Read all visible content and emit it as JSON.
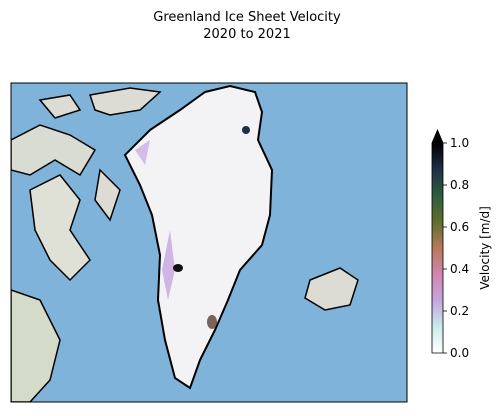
{
  "title": "Greenland Ice Sheet Velocity",
  "subtitle": "2020 to 2021",
  "colorbar": {
    "label": "Velocity [m/d]",
    "lim": [
      0,
      1
    ],
    "ticks": [
      {
        "value": 0,
        "label": "0.0"
      },
      {
        "value": 0.2,
        "label": "0.2"
      },
      {
        "value": 0.4,
        "label": "0.4"
      },
      {
        "value": 0.6,
        "label": "0.6"
      },
      {
        "value": 0.8,
        "label": "0.8"
      },
      {
        "value": 1,
        "label": "1.0"
      }
    ],
    "colors": [
      "#ffffff",
      "#c9ecea",
      "#c7a4e0",
      "#d086b0",
      "#b87a5a",
      "#5e6d2c",
      "#2f5d3e",
      "#1f2f47",
      "#000000"
    ],
    "extend": "max"
  }
}
